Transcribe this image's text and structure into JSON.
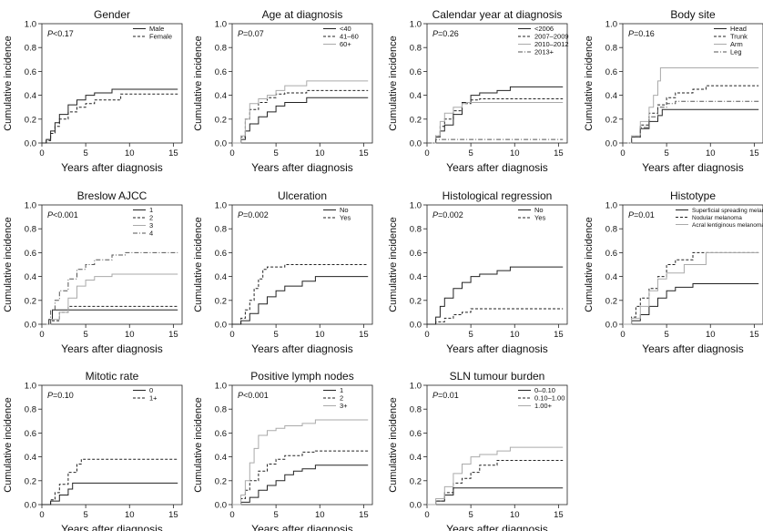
{
  "figure": {
    "xlabel": "Years after diagnosis",
    "ylabel": "Cumulative incidence"
  },
  "styles": {
    "solid": {
      "color": "#222222",
      "dash": ""
    },
    "dashed": {
      "color": "#222222",
      "dash": "3,2"
    },
    "light": {
      "color": "#aaaaaa",
      "dash": ""
    },
    "dotdash": {
      "color": "#555555",
      "dash": "5,2,1,2"
    }
  },
  "chart_data": [
    {
      "type": "line",
      "title": "Gender",
      "pvalue": "0.17",
      "p_prefix": "<",
      "xlabel": "Years after diagnosis",
      "ylabel": "Cumulative incidence",
      "xlim": [
        0,
        16
      ],
      "ylim": [
        0,
        1
      ],
      "xticks": [
        0,
        5,
        10,
        15
      ],
      "yticks": [
        0.0,
        0.2,
        0.4,
        0.6,
        0.8,
        1.0
      ],
      "legend_position": "top-right",
      "series": [
        {
          "name": "Male",
          "style": "solid",
          "x": [
            0,
            0.5,
            1,
            1.5,
            2,
            3,
            4,
            5,
            6,
            8,
            10,
            15.5
          ],
          "y": [
            0,
            0.03,
            0.1,
            0.17,
            0.24,
            0.32,
            0.36,
            0.4,
            0.42,
            0.45,
            0.45,
            0.45
          ]
        },
        {
          "name": "Female",
          "style": "dashed",
          "x": [
            0,
            0.5,
            1,
            1.5,
            2,
            3,
            4,
            5,
            6,
            9,
            10,
            15.5
          ],
          "y": [
            0,
            0.02,
            0.08,
            0.14,
            0.2,
            0.26,
            0.3,
            0.33,
            0.36,
            0.41,
            0.41,
            0.41
          ]
        }
      ]
    },
    {
      "type": "line",
      "title": "Age at diagnosis",
      "pvalue": "0.07",
      "p_prefix": "=",
      "xlabel": "Years after diagnosis",
      "ylabel": "Cumulative incidence",
      "xlim": [
        0,
        16
      ],
      "ylim": [
        0,
        1
      ],
      "xticks": [
        0,
        5,
        10,
        15
      ],
      "yticks": [
        0.0,
        0.2,
        0.4,
        0.6,
        0.8,
        1.0
      ],
      "legend_position": "top-right",
      "series": [
        {
          "name": "<40",
          "style": "solid",
          "x": [
            0,
            1,
            1.5,
            2,
            3,
            4,
            5,
            6,
            8.5,
            15.5
          ],
          "y": [
            0,
            0.03,
            0.1,
            0.16,
            0.22,
            0.26,
            0.31,
            0.34,
            0.38,
            0.38
          ]
        },
        {
          "name": "41–60",
          "style": "dashed",
          "x": [
            0,
            1,
            1.5,
            2,
            3,
            4,
            5,
            6,
            8.5,
            15.5
          ],
          "y": [
            0,
            0.05,
            0.2,
            0.28,
            0.34,
            0.38,
            0.41,
            0.42,
            0.44,
            0.44
          ]
        },
        {
          "name": "60+",
          "style": "light",
          "x": [
            0,
            1,
            1.5,
            2,
            3,
            4,
            5,
            6,
            8.5,
            15.5
          ],
          "y": [
            0,
            0.06,
            0.2,
            0.33,
            0.37,
            0.4,
            0.44,
            0.48,
            0.52,
            0.52
          ]
        }
      ]
    },
    {
      "type": "line",
      "title": "Calendar year at diagnosis",
      "pvalue": "0.26",
      "p_prefix": "=",
      "xlabel": "Years after diagnosis",
      "ylabel": "Cumulative incidence",
      "xlim": [
        0,
        16
      ],
      "ylim": [
        0,
        1
      ],
      "xticks": [
        0,
        5,
        10,
        15
      ],
      "yticks": [
        0.0,
        0.2,
        0.4,
        0.6,
        0.8,
        1.0
      ],
      "legend_position": "top-right",
      "series": [
        {
          "name": "<2006",
          "style": "solid",
          "x": [
            0,
            1,
            1.5,
            2,
            3,
            4,
            5,
            6,
            8,
            9.5,
            15.5
          ],
          "y": [
            0,
            0.05,
            0.1,
            0.15,
            0.24,
            0.34,
            0.4,
            0.42,
            0.44,
            0.47,
            0.47
          ]
        },
        {
          "name": "2007–2009",
          "style": "dashed",
          "x": [
            0,
            1,
            1.5,
            2,
            3,
            4,
            5,
            6,
            15.5
          ],
          "y": [
            0,
            0.06,
            0.14,
            0.2,
            0.27,
            0.33,
            0.36,
            0.37,
            0.37
          ]
        },
        {
          "name": "2010–2012",
          "style": "light",
          "x": [
            0,
            1,
            1.5,
            2,
            3,
            4,
            4.5,
            15.5
          ],
          "y": [
            0,
            0.06,
            0.18,
            0.25,
            0.3,
            0.33,
            0.34,
            0.34
          ]
        },
        {
          "name": "2013+",
          "style": "dotdash",
          "x": [
            0,
            1,
            15.5
          ],
          "y": [
            0,
            0.03,
            0.03
          ]
        }
      ]
    },
    {
      "type": "line",
      "title": "Body site",
      "pvalue": "0.16",
      "p_prefix": "=",
      "xlabel": "Years after diagnosis",
      "ylabel": "Cumulative incidence",
      "xlim": [
        0,
        16
      ],
      "ylim": [
        0,
        1
      ],
      "xticks": [
        0,
        5,
        10,
        15
      ],
      "yticks": [
        0.0,
        0.2,
        0.4,
        0.6,
        0.8,
        1.0
      ],
      "legend_position": "top-right",
      "series": [
        {
          "name": "Head",
          "style": "solid",
          "x": [
            0,
            1,
            2,
            3,
            4,
            4.5,
            15.5
          ],
          "y": [
            0,
            0.05,
            0.12,
            0.18,
            0.23,
            0.28,
            0.28
          ]
        },
        {
          "name": "Trunk",
          "style": "dashed",
          "x": [
            0,
            1,
            2,
            3,
            4,
            5,
            6,
            8,
            9.5,
            15.5
          ],
          "y": [
            0,
            0.05,
            0.15,
            0.25,
            0.32,
            0.38,
            0.42,
            0.45,
            0.48,
            0.48
          ]
        },
        {
          "name": "Arm",
          "style": "light",
          "x": [
            0,
            1,
            2,
            3,
            3.5,
            4,
            4.3,
            15.5
          ],
          "y": [
            0,
            0.06,
            0.18,
            0.3,
            0.4,
            0.52,
            0.63,
            0.63
          ]
        },
        {
          "name": "Leg",
          "style": "dotdash",
          "x": [
            0,
            1,
            2,
            3,
            4,
            5,
            6,
            15.5
          ],
          "y": [
            0,
            0.05,
            0.13,
            0.22,
            0.3,
            0.33,
            0.35,
            0.35
          ]
        }
      ]
    },
    {
      "type": "line",
      "title": "Breslow AJCC",
      "pvalue": "0.001",
      "p_prefix": "<",
      "xlabel": "Years after diagnosis",
      "ylabel": "Cumulative incidence",
      "xlim": [
        0,
        16
      ],
      "ylim": [
        0,
        1
      ],
      "xticks": [
        0,
        5,
        10,
        15
      ],
      "yticks": [
        0.0,
        0.2,
        0.4,
        0.6,
        0.8,
        1.0
      ],
      "legend_position": "top-right",
      "series": [
        {
          "name": "1",
          "style": "solid",
          "x": [
            0,
            0.8,
            1.2,
            15.5
          ],
          "y": [
            0,
            0.04,
            0.12,
            0.12
          ]
        },
        {
          "name": "2",
          "style": "dashed",
          "x": [
            0,
            1,
            2,
            3,
            15.5
          ],
          "y": [
            0,
            0.03,
            0.1,
            0.15,
            0.15
          ]
        },
        {
          "name": "3",
          "style": "light",
          "x": [
            0,
            1,
            2,
            3,
            4,
            5,
            6,
            8,
            15.5
          ],
          "y": [
            0,
            0.04,
            0.1,
            0.22,
            0.32,
            0.37,
            0.4,
            0.42,
            0.42
          ]
        },
        {
          "name": "4",
          "style": "dotdash",
          "x": [
            0,
            1,
            1.5,
            2,
            3,
            4,
            5,
            6,
            8,
            9.5,
            15.5
          ],
          "y": [
            0,
            0.12,
            0.2,
            0.28,
            0.38,
            0.46,
            0.5,
            0.54,
            0.58,
            0.6,
            0.6
          ]
        }
      ]
    },
    {
      "type": "line",
      "title": "Ulceration",
      "pvalue": "0.002",
      "p_prefix": "=",
      "xlabel": "Years after diagnosis",
      "ylabel": "Cumulative incidence",
      "xlim": [
        0,
        16
      ],
      "ylim": [
        0,
        1
      ],
      "xticks": [
        0,
        5,
        10,
        15
      ],
      "yticks": [
        0.0,
        0.2,
        0.4,
        0.6,
        0.8,
        1.0
      ],
      "legend_position": "top-right",
      "series": [
        {
          "name": "No",
          "style": "solid",
          "x": [
            0,
            1,
            2,
            3,
            4,
            5,
            6,
            8,
            9.5,
            15.5
          ],
          "y": [
            0,
            0.03,
            0.09,
            0.17,
            0.23,
            0.28,
            0.32,
            0.36,
            0.4,
            0.4
          ]
        },
        {
          "name": "Yes",
          "style": "dashed",
          "x": [
            0,
            1,
            1.5,
            2,
            2.5,
            3,
            3.5,
            4,
            6,
            15.5
          ],
          "y": [
            0,
            0.05,
            0.12,
            0.2,
            0.3,
            0.38,
            0.46,
            0.48,
            0.5,
            0.5
          ]
        }
      ]
    },
    {
      "type": "line",
      "title": "Histological regression",
      "pvalue": "0.002",
      "p_prefix": "=",
      "xlabel": "Years after diagnosis",
      "ylabel": "Cumulative incidence",
      "xlim": [
        0,
        16
      ],
      "ylim": [
        0,
        1
      ],
      "xticks": [
        0,
        5,
        10,
        15
      ],
      "yticks": [
        0.0,
        0.2,
        0.4,
        0.6,
        0.8,
        1.0
      ],
      "legend_position": "top-right",
      "series": [
        {
          "name": "No",
          "style": "solid",
          "x": [
            0,
            1,
            1.5,
            2,
            3,
            4,
            5,
            6,
            8,
            9.5,
            15.5
          ],
          "y": [
            0,
            0.06,
            0.15,
            0.22,
            0.3,
            0.35,
            0.4,
            0.42,
            0.45,
            0.48,
            0.48
          ]
        },
        {
          "name": "Yes",
          "style": "dashed",
          "x": [
            0,
            1,
            2,
            3,
            4,
            5,
            15.5
          ],
          "y": [
            0,
            0.02,
            0.05,
            0.08,
            0.1,
            0.13,
            0.13
          ]
        }
      ]
    },
    {
      "type": "line",
      "title": "Histotype",
      "pvalue": "0.01",
      "p_prefix": "=",
      "xlabel": "Years after diagnosis",
      "ylabel": "Cumulative incidence",
      "xlim": [
        0,
        16
      ],
      "ylim": [
        0,
        1
      ],
      "xticks": [
        0,
        5,
        10,
        15
      ],
      "yticks": [
        0.0,
        0.2,
        0.4,
        0.6,
        0.8,
        1.0
      ],
      "legend_position": "top-right",
      "series": [
        {
          "name": "Superficial spreading melanoma",
          "style": "solid",
          "x": [
            0,
            1,
            2,
            3,
            4,
            5,
            6,
            8,
            15.5
          ],
          "y": [
            0,
            0.03,
            0.08,
            0.15,
            0.22,
            0.28,
            0.31,
            0.34,
            0.34
          ]
        },
        {
          "name": "Nodular melanoma",
          "style": "dashed",
          "x": [
            0,
            1,
            1.5,
            2,
            3,
            4,
            5,
            6,
            8,
            15.5
          ],
          "y": [
            0,
            0.06,
            0.15,
            0.22,
            0.3,
            0.4,
            0.5,
            0.54,
            0.6,
            0.6
          ]
        },
        {
          "name": "Acral lentiginous melanoma",
          "style": "light",
          "x": [
            0,
            1,
            2,
            3,
            4,
            5,
            7,
            9.5,
            15.5
          ],
          "y": [
            0,
            0.05,
            0.15,
            0.28,
            0.38,
            0.43,
            0.5,
            0.6,
            0.6
          ]
        }
      ]
    },
    {
      "type": "line",
      "title": "Mitotic rate",
      "pvalue": "0.10",
      "p_prefix": "=",
      "xlabel": "Years after diagnosis",
      "ylabel": "Cumulative incidence",
      "xlim": [
        0,
        16
      ],
      "ylim": [
        0,
        1
      ],
      "xticks": [
        0,
        5,
        10,
        15
      ],
      "yticks": [
        0.0,
        0.2,
        0.4,
        0.6,
        0.8,
        1.0
      ],
      "legend_position": "top-right",
      "series": [
        {
          "name": "0",
          "style": "solid",
          "x": [
            0,
            1,
            2,
            3,
            3.5,
            15.5
          ],
          "y": [
            0,
            0.03,
            0.08,
            0.13,
            0.18,
            0.18
          ]
        },
        {
          "name": "1+",
          "style": "dashed",
          "x": [
            0,
            1,
            1.5,
            2,
            3,
            4,
            4.5,
            15.5
          ],
          "y": [
            0,
            0.04,
            0.1,
            0.17,
            0.27,
            0.34,
            0.38,
            0.38
          ]
        }
      ]
    },
    {
      "type": "line",
      "title": "Positive lymph nodes",
      "pvalue": "0.001",
      "p_prefix": "<",
      "xlabel": "Years after diagnosis",
      "ylabel": "Cumulative incidence",
      "xlim": [
        0,
        16
      ],
      "ylim": [
        0,
        1
      ],
      "xticks": [
        0,
        5,
        10,
        15
      ],
      "yticks": [
        0.0,
        0.2,
        0.4,
        0.6,
        0.8,
        1.0
      ],
      "legend_position": "top-right",
      "series": [
        {
          "name": "1",
          "style": "solid",
          "x": [
            0,
            1,
            2,
            3,
            4,
            5,
            6,
            7,
            8,
            9.5,
            15.5
          ],
          "y": [
            0,
            0.02,
            0.06,
            0.12,
            0.16,
            0.2,
            0.25,
            0.28,
            0.3,
            0.33,
            0.33
          ]
        },
        {
          "name": "2",
          "style": "dashed",
          "x": [
            0,
            1,
            1.5,
            2,
            3,
            4,
            5,
            6,
            8,
            9.5,
            15.5
          ],
          "y": [
            0,
            0.05,
            0.12,
            0.2,
            0.28,
            0.34,
            0.38,
            0.41,
            0.44,
            0.45,
            0.45
          ]
        },
        {
          "name": "3+",
          "style": "light",
          "x": [
            0,
            1,
            1.5,
            2,
            2.5,
            3,
            4,
            5,
            6,
            8,
            9.5,
            15.5
          ],
          "y": [
            0,
            0.08,
            0.2,
            0.35,
            0.47,
            0.58,
            0.62,
            0.64,
            0.66,
            0.68,
            0.71,
            0.71
          ]
        }
      ]
    },
    {
      "type": "line",
      "title": "SLN tumour burden",
      "pvalue": "0.01",
      "p_prefix": "=",
      "xlabel": "Years after diagnosis",
      "ylabel": "Cumulative incidence",
      "xlim": [
        0,
        16
      ],
      "ylim": [
        0,
        1
      ],
      "xticks": [
        0,
        5,
        10,
        15
      ],
      "yticks": [
        0.0,
        0.2,
        0.4,
        0.6,
        0.8,
        1.0
      ],
      "legend_position": "top-right",
      "series": [
        {
          "name": "0–0.10",
          "style": "solid",
          "x": [
            0,
            1,
            2,
            3,
            15.5
          ],
          "y": [
            0,
            0.03,
            0.08,
            0.14,
            0.14
          ]
        },
        {
          "name": "0.10–1.00",
          "style": "dashed",
          "x": [
            0,
            1,
            2,
            3,
            4,
            5,
            6,
            8,
            15.5
          ],
          "y": [
            0,
            0.03,
            0.1,
            0.18,
            0.22,
            0.27,
            0.33,
            0.37,
            0.37
          ]
        },
        {
          "name": "1.00+",
          "style": "light",
          "x": [
            0,
            1,
            2,
            3,
            4,
            5,
            6,
            8,
            9.5,
            15.5
          ],
          "y": [
            0,
            0.05,
            0.15,
            0.26,
            0.34,
            0.4,
            0.42,
            0.45,
            0.48,
            0.48
          ]
        }
      ]
    }
  ]
}
